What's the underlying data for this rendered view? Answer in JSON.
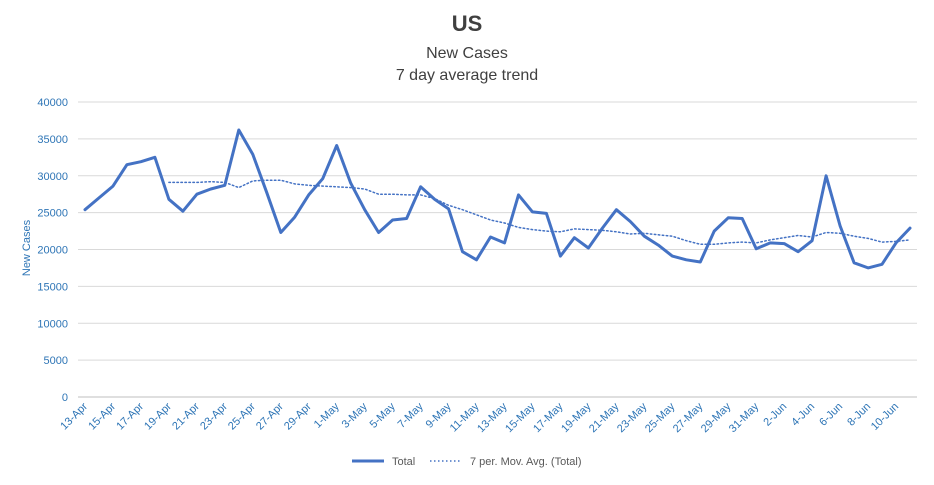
{
  "chart_data": {
    "type": "line",
    "title": "US",
    "subtitle_lines": [
      "New Cases",
      "7 day average trend"
    ],
    "xlabel": "",
    "ylabel": "New Cases",
    "ylim": [
      0,
      40000
    ],
    "yticks": [
      0,
      5000,
      10000,
      15000,
      20000,
      25000,
      30000,
      35000,
      40000
    ],
    "grid": "horizontal",
    "legend_position": "bottom",
    "x": [
      "13-Apr",
      "14-Apr",
      "15-Apr",
      "16-Apr",
      "17-Apr",
      "18-Apr",
      "19-Apr",
      "20-Apr",
      "21-Apr",
      "22-Apr",
      "23-Apr",
      "24-Apr",
      "25-Apr",
      "26-Apr",
      "27-Apr",
      "28-Apr",
      "29-Apr",
      "30-Apr",
      "1-May",
      "2-May",
      "3-May",
      "4-May",
      "5-May",
      "6-May",
      "7-May",
      "8-May",
      "9-May",
      "10-May",
      "11-May",
      "12-May",
      "13-May",
      "14-May",
      "15-May",
      "16-May",
      "17-May",
      "18-May",
      "19-May",
      "20-May",
      "21-May",
      "22-May",
      "23-May",
      "24-May",
      "25-May",
      "26-May",
      "27-May",
      "28-May",
      "29-May",
      "30-May",
      "31-May",
      "1-Jun",
      "2-Jun",
      "3-Jun",
      "4-Jun",
      "5-Jun",
      "6-Jun",
      "7-Jun",
      "8-Jun",
      "9-Jun",
      "10-Jun",
      "11-Jun"
    ],
    "x_tick_labels": [
      "13-Apr",
      "15-Apr",
      "17-Apr",
      "19-Apr",
      "21-Apr",
      "23-Apr",
      "25-Apr",
      "27-Apr",
      "29-Apr",
      "1-May",
      "3-May",
      "5-May",
      "7-May",
      "9-May",
      "11-May",
      "13-May",
      "15-May",
      "17-May",
      "19-May",
      "21-May",
      "23-May",
      "25-May",
      "27-May",
      "29-May",
      "31-May",
      "2-Jun",
      "4-Jun",
      "6-Jun",
      "8-Jun",
      "10-Jun"
    ],
    "series": [
      {
        "name": "Total",
        "color": "#4472c4",
        "style": "solid",
        "values": [
          25400,
          27000,
          28600,
          31500,
          31900,
          32500,
          26800,
          25200,
          27500,
          28200,
          28700,
          36200,
          32900,
          27700,
          22300,
          24400,
          27400,
          29600,
          34100,
          29000,
          25400,
          22300,
          24000,
          24200,
          28500,
          26800,
          25500,
          19700,
          18600,
          21700,
          20900,
          27400,
          25100,
          24900,
          19100,
          21600,
          20200,
          22900,
          25400,
          23800,
          21800,
          20600,
          19100,
          18600,
          18300,
          22500,
          24300,
          24200,
          20100,
          20900,
          20800,
          19700,
          21200,
          30000,
          23200,
          18200,
          17500,
          18000,
          20900,
          22900
        ]
      },
      {
        "name": "7 per. Mov. Avg. (Total)",
        "color": "#4472c4",
        "style": "dotted",
        "values": [
          null,
          null,
          null,
          null,
          null,
          null,
          29100,
          29100,
          29100,
          29200,
          29100,
          28400,
          29300,
          29400,
          29400,
          28900,
          28700,
          28600,
          28500,
          28400,
          28200,
          27500,
          27500,
          27400,
          27400,
          26900,
          26000,
          25400,
          24700,
          24000,
          23600,
          23000,
          22700,
          22500,
          22400,
          22800,
          22700,
          22600,
          22400,
          22100,
          22200,
          22000,
          21800,
          21200,
          20700,
          20700,
          20900,
          21000,
          20900,
          21300,
          21600,
          21900,
          21700,
          22300,
          22200,
          21800,
          21500,
          21000,
          21100,
          21300
        ]
      }
    ]
  }
}
